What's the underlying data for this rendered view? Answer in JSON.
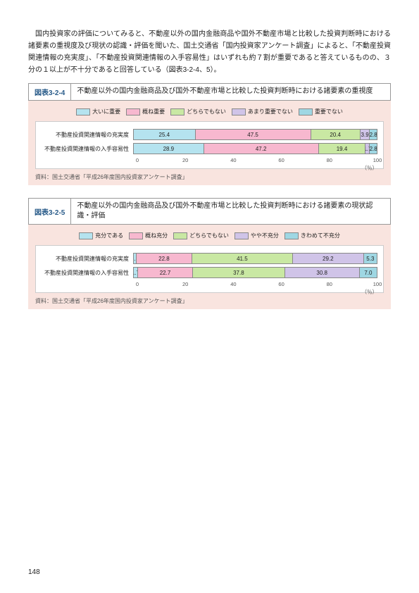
{
  "intro_text": "国内投資家の評価についてみると、不動産以外の国内金融商品や国外不動産市場と比較した投資判断時における諸要素の重視度及び現状の認識・評価を聞いた、国土交通省「国内投資家アンケート調査」によると、「不動産投資関連情報の充実度」、「不動産投資関連情報の入手容易性」はいずれも約７割が重要であると答えているものの、３分の１以上が不十分であると回答している（図表3-2-4、5）。",
  "fig1": {
    "num": "図表3-2-4",
    "title": "不動産以外の国内金融商品及び国外不動産市場と比較した投資判断時における諸要素の重視度",
    "legend": [
      {
        "label": "大いに重要",
        "color": "#b5e3ef"
      },
      {
        "label": "概ね重要",
        "color": "#f7b8cf"
      },
      {
        "label": "どちらでもない",
        "color": "#c9e8a3"
      },
      {
        "label": "あまり重要でない",
        "color": "#d0c4e8"
      },
      {
        "label": "重要でない",
        "color": "#9fd7e3"
      }
    ],
    "rows": [
      {
        "label": "不動産投資関連情報の充実度",
        "segs": [
          {
            "v": 25.4,
            "t": "25.4",
            "c": "#b5e3ef"
          },
          {
            "v": 47.5,
            "t": "47.5",
            "c": "#f7b8cf"
          },
          {
            "v": 20.4,
            "t": "20.4",
            "c": "#c9e8a3"
          },
          {
            "v": 3.9,
            "t": "3.9",
            "c": "#d0c4e8"
          },
          {
            "v": 2.8,
            "t": "2.8",
            "c": "#9fd7e3"
          }
        ]
      },
      {
        "label": "不動産投資関連情報の入手容易性",
        "segs": [
          {
            "v": 28.9,
            "t": "28.9",
            "c": "#b5e3ef"
          },
          {
            "v": 47.2,
            "t": "47.2",
            "c": "#f7b8cf"
          },
          {
            "v": 19.4,
            "t": "19.4",
            "c": "#c9e8a3"
          },
          {
            "v": 1.7,
            "t": "1.7",
            "c": "#d0c4e8"
          },
          {
            "v": 2.8,
            "t": "2.8",
            "c": "#9fd7e3"
          }
        ]
      }
    ],
    "xticks": [
      0,
      20,
      40,
      60,
      80,
      100
    ],
    "unit": "（％）",
    "source": "資料：国土交通省「平成26年度国内投資家アンケート調査」"
  },
  "fig2": {
    "num": "図表3-2-5",
    "title": "不動産以外の国内金融商品及び国外不動産市場と比較した投資判断時における諸要素の現状認識・評価",
    "legend": [
      {
        "label": "充分である",
        "color": "#b5e3ef"
      },
      {
        "label": "概ね充分",
        "color": "#f7b8cf"
      },
      {
        "label": "どちらでもない",
        "color": "#c9e8a3"
      },
      {
        "label": "やや不充分",
        "color": "#d0c4e8"
      },
      {
        "label": "きわめて不充分",
        "color": "#9fd7e3"
      }
    ],
    "rows": [
      {
        "label": "不動産投資関連情報の充実度",
        "segs": [
          {
            "v": 1.2,
            "t": "1.2",
            "c": "#b5e3ef"
          },
          {
            "v": 22.8,
            "t": "22.8",
            "c": "#f7b8cf"
          },
          {
            "v": 41.5,
            "t": "41.5",
            "c": "#c9e8a3"
          },
          {
            "v": 29.2,
            "t": "29.2",
            "c": "#d0c4e8"
          },
          {
            "v": 5.3,
            "t": "5.3",
            "c": "#9fd7e3"
          }
        ]
      },
      {
        "label": "不動産投資関連情報の入手容易性",
        "segs": [
          {
            "v": 1.7,
            "t": "1.7",
            "c": "#b5e3ef"
          },
          {
            "v": 22.7,
            "t": "22.7",
            "c": "#f7b8cf"
          },
          {
            "v": 37.8,
            "t": "37.8",
            "c": "#c9e8a3"
          },
          {
            "v": 30.8,
            "t": "30.8",
            "c": "#d0c4e8"
          },
          {
            "v": 7.0,
            "t": "7.0",
            "c": "#9fd7e3"
          }
        ]
      }
    ],
    "xticks": [
      0,
      20,
      40,
      60,
      80,
      100
    ],
    "unit": "（％）",
    "source": "資料：国土交通省「平成26年度国内投資家アンケート調査」"
  },
  "page_number": "148"
}
